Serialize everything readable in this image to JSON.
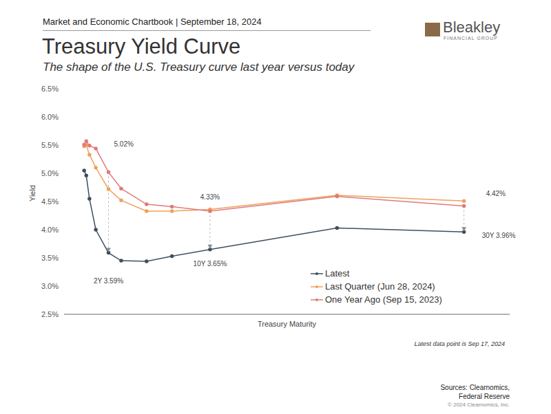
{
  "chart_data": {
    "type": "line",
    "header": "Market and Economic Chartbook | September 18, 2024",
    "logo": [
      "Bleakley",
      "FINANCIAL GROUP"
    ],
    "title": "Treasury Yield Curve",
    "subtitle": "The shape of the U.S. Treasury curve last year versus today",
    "xlabel": "Treasury Maturity",
    "ylabel": "Yield",
    "x": [
      0.083,
      0.25,
      0.5,
      1,
      2,
      3,
      5,
      7,
      10,
      20,
      30
    ],
    "series": [
      {
        "name": "Latest",
        "color": "#3d4f60",
        "marker": "circle",
        "values": [
          5.05,
          4.96,
          4.55,
          4.0,
          3.59,
          3.45,
          3.44,
          3.53,
          3.65,
          4.03,
          3.96
        ]
      },
      {
        "name": "Last Quarter (Jun 28, 2024)",
        "color": "#f0a05a",
        "marker": "circle",
        "values": [
          5.48,
          5.5,
          5.33,
          5.1,
          4.72,
          4.52,
          4.33,
          4.33,
          4.36,
          4.61,
          4.51
        ]
      },
      {
        "name": "One Year Ago (Sep 15, 2023)",
        "color": "#e07a7a",
        "marker": "circle",
        "values": [
          5.51,
          5.57,
          5.49,
          5.44,
          5.02,
          4.73,
          4.45,
          4.41,
          4.33,
          4.59,
          4.42
        ]
      }
    ],
    "xlim": [
      -1.5,
      33.6
    ],
    "ylim": [
      2.5,
      6.5
    ],
    "yticks": [
      {
        "value": 2.5,
        "label": "2.5%"
      },
      {
        "value": 3.0,
        "label": "3.0%"
      },
      {
        "value": 3.5,
        "label": "3.5%"
      },
      {
        "value": 4.0,
        "label": "4.0%"
      },
      {
        "value": 4.5,
        "label": "4.5%"
      },
      {
        "value": 5.0,
        "label": "5.0%"
      },
      {
        "value": 5.5,
        "label": "5.5%"
      },
      {
        "value": 6.0,
        "label": "6.0%"
      },
      {
        "value": 6.5,
        "label": "6.5%"
      }
    ],
    "tick_labels": "y",
    "grid": false,
    "legend": "lower right",
    "annotations": [
      {
        "text": "5.02%",
        "x": 2,
        "y": 5.02
      },
      {
        "text": "2Y 3.59%",
        "x": 2,
        "y": 3.59
      },
      {
        "text": "4.33%",
        "x": 10,
        "y": 4.33
      },
      {
        "text": "10Y 3.65%",
        "x": 10,
        "y": 3.65
      },
      {
        "text": "4.42%",
        "x": 30,
        "y": 4.42
      },
      {
        "text": "30Y 3.96%",
        "x": 30,
        "y": 3.96
      }
    ],
    "note": "Latest data point is Sep 17, 2024",
    "sources": [
      "Sources: Clearnomics,",
      "Federal Reserve"
    ],
    "copyright": "© 2024 Clearnomics, Inc."
  }
}
